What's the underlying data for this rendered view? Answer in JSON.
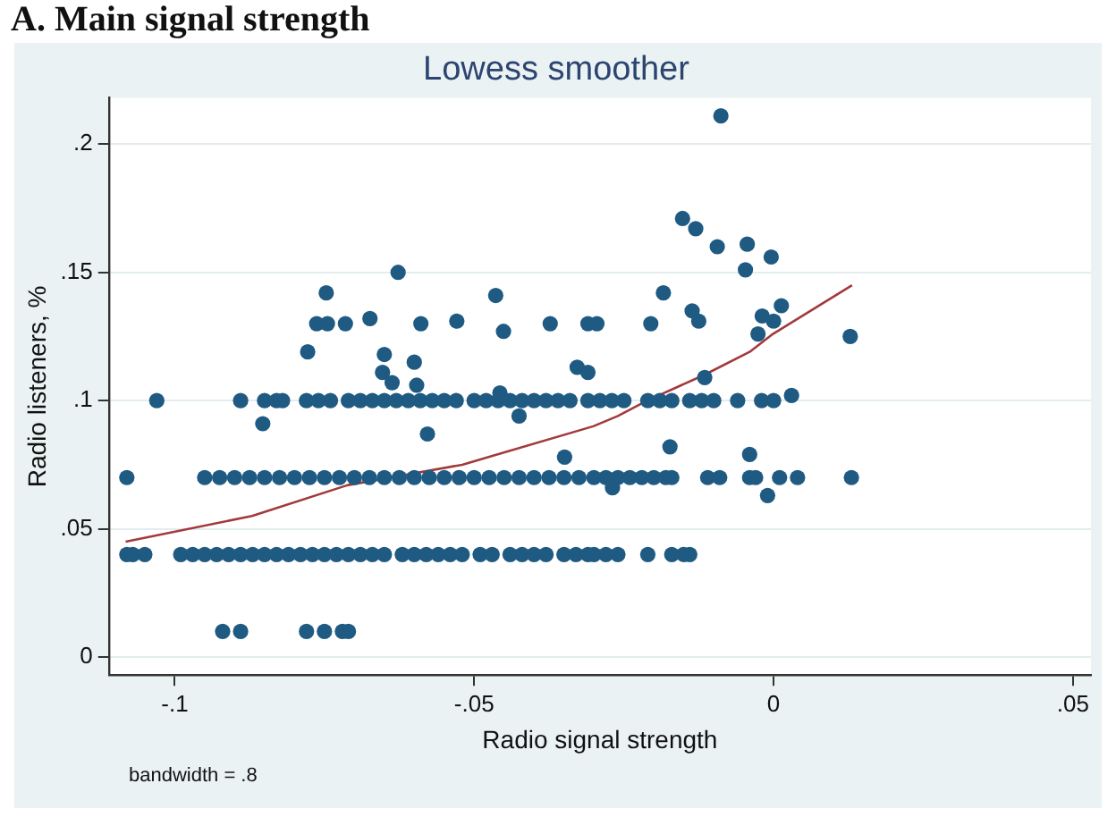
{
  "chart_data": {
    "type": "scatter",
    "title": "A. Main signal strength",
    "subtitle": "Lowess smoother",
    "xlabel": "Radio signal strength",
    "ylabel": "Radio listeners, %",
    "annotations": [
      "bandwidth = .8"
    ],
    "xlim": [
      -0.111,
      0.053
    ],
    "ylim": [
      -0.007,
      0.218
    ],
    "xticks": [
      {
        "value": -0.1,
        "label": "-.1"
      },
      {
        "value": -0.05,
        "label": "-.05"
      },
      0,
      {
        "value": 0.05,
        "label": ".05"
      }
    ],
    "yticks": [
      0,
      {
        "value": 0.05,
        "label": ".05"
      },
      {
        "value": 0.1,
        "label": ".1"
      },
      {
        "value": 0.15,
        "label": ".15"
      },
      {
        "value": 0.2,
        "label": ".2"
      }
    ],
    "grid": "y",
    "marker": "circle",
    "series": [
      {
        "type": "scatter",
        "color": "#1f5a82",
        "x": [
          -0.108,
          -0.107,
          -0.105,
          -0.099,
          -0.097,
          -0.095,
          -0.093,
          -0.091,
          -0.089,
          -0.087,
          -0.085,
          -0.083,
          -0.081,
          -0.079,
          -0.077,
          -0.075,
          -0.073,
          -0.071,
          -0.069,
          -0.067,
          -0.065,
          -0.062,
          -0.06,
          -0.058,
          -0.056,
          -0.054,
          -0.052,
          -0.049,
          -0.047,
          -0.044,
          -0.042,
          -0.04,
          -0.038,
          -0.035,
          -0.033,
          -0.031,
          -0.03,
          -0.028,
          -0.026,
          -0.021,
          -0.017,
          -0.015,
          -0.014,
          -0.108,
          -0.095,
          -0.0925,
          -0.09,
          -0.0875,
          -0.085,
          -0.0825,
          -0.08,
          -0.0775,
          -0.075,
          -0.0725,
          -0.07,
          -0.0675,
          -0.065,
          -0.0625,
          -0.06,
          -0.0575,
          -0.055,
          -0.0525,
          -0.05,
          -0.0475,
          -0.045,
          -0.0425,
          -0.04,
          -0.0375,
          -0.035,
          -0.0325,
          -0.03,
          -0.028,
          -0.026,
          -0.024,
          -0.022,
          -0.02,
          -0.018,
          -0.017,
          -0.011,
          -0.009,
          -0.004,
          -0.003,
          0.001,
          0.004,
          0.013,
          -0.103,
          -0.089,
          -0.085,
          -0.083,
          -0.082,
          -0.078,
          -0.076,
          -0.074,
          -0.071,
          -0.069,
          -0.067,
          -0.065,
          -0.063,
          -0.061,
          -0.059,
          -0.057,
          -0.055,
          -0.053,
          -0.05,
          -0.048,
          -0.046,
          -0.044,
          -0.042,
          -0.04,
          -0.038,
          -0.036,
          -0.034,
          -0.031,
          -0.029,
          -0.027,
          -0.025,
          -0.021,
          -0.019,
          -0.017,
          -0.014,
          -0.012,
          -0.01,
          -0.006,
          -0.002,
          0.0,
          0.003,
          -0.092,
          -0.089,
          -0.078,
          -0.075,
          -0.072,
          -0.071,
          -0.0853,
          -0.0778,
          -0.0763,
          -0.0745,
          -0.0747,
          -0.0715,
          -0.0674,
          -0.0627,
          -0.065,
          -0.0653,
          -0.0637,
          -0.06,
          -0.0596,
          -0.0589,
          -0.0578,
          -0.0529,
          -0.0464,
          -0.0451,
          -0.0457,
          -0.0425,
          -0.0373,
          -0.0349,
          -0.0328,
          -0.031,
          -0.031,
          -0.0295,
          -0.0205,
          -0.0184,
          -0.0152,
          -0.013,
          -0.0094,
          -0.0044,
          -0.0047,
          -0.0004,
          -0.0136,
          -0.0125,
          -0.0115,
          -0.0173,
          -0.004,
          -0.0269,
          -0.001,
          -0.0026,
          -0.0019,
          0.0,
          0.0013,
          0.0128,
          -0.0088
        ],
        "values": [
          0.04,
          0.04,
          0.04,
          0.04,
          0.04,
          0.04,
          0.04,
          0.04,
          0.04,
          0.04,
          0.04,
          0.04,
          0.04,
          0.04,
          0.04,
          0.04,
          0.04,
          0.04,
          0.04,
          0.04,
          0.04,
          0.04,
          0.04,
          0.04,
          0.04,
          0.04,
          0.04,
          0.04,
          0.04,
          0.04,
          0.04,
          0.04,
          0.04,
          0.04,
          0.04,
          0.04,
          0.04,
          0.04,
          0.04,
          0.04,
          0.04,
          0.04,
          0.04,
          0.07,
          0.07,
          0.07,
          0.07,
          0.07,
          0.07,
          0.07,
          0.07,
          0.07,
          0.07,
          0.07,
          0.07,
          0.07,
          0.07,
          0.07,
          0.07,
          0.07,
          0.07,
          0.07,
          0.07,
          0.07,
          0.07,
          0.07,
          0.07,
          0.07,
          0.07,
          0.07,
          0.07,
          0.07,
          0.07,
          0.07,
          0.07,
          0.07,
          0.07,
          0.07,
          0.07,
          0.07,
          0.07,
          0.07,
          0.07,
          0.07,
          0.07,
          0.1,
          0.1,
          0.1,
          0.1,
          0.1,
          0.1,
          0.1,
          0.1,
          0.1,
          0.1,
          0.1,
          0.1,
          0.1,
          0.1,
          0.1,
          0.1,
          0.1,
          0.1,
          0.1,
          0.1,
          0.1,
          0.1,
          0.1,
          0.1,
          0.1,
          0.1,
          0.1,
          0.1,
          0.1,
          0.1,
          0.1,
          0.1,
          0.1,
          0.1,
          0.1,
          0.1,
          0.1,
          0.1,
          0.1,
          0.1,
          0.102,
          0.01,
          0.01,
          0.01,
          0.01,
          0.01,
          0.01,
          0.091,
          0.119,
          0.13,
          0.13,
          0.142,
          0.13,
          0.132,
          0.15,
          0.118,
          0.111,
          0.107,
          0.115,
          0.106,
          0.13,
          0.087,
          0.131,
          0.141,
          0.127,
          0.103,
          0.094,
          0.13,
          0.078,
          0.113,
          0.13,
          0.111,
          0.13,
          0.13,
          0.142,
          0.171,
          0.167,
          0.16,
          0.161,
          0.151,
          0.156,
          0.135,
          0.131,
          0.109,
          0.082,
          0.079,
          0.066,
          0.063,
          0.126,
          0.133,
          0.131,
          0.137,
          0.125,
          0.211
        ]
      },
      {
        "type": "line",
        "color": "#a23a3c",
        "marker": "none",
        "x": [
          -0.1082,
          -0.0871,
          -0.0712,
          -0.052,
          -0.0301,
          -0.026,
          -0.0211,
          -0.0116,
          -0.004,
          -0.0001,
          0.0131
        ],
        "values": [
          0.045,
          0.055,
          0.067,
          0.075,
          0.09,
          0.094,
          0.1,
          0.11,
          0.119,
          0.126,
          0.145
        ]
      }
    ]
  }
}
